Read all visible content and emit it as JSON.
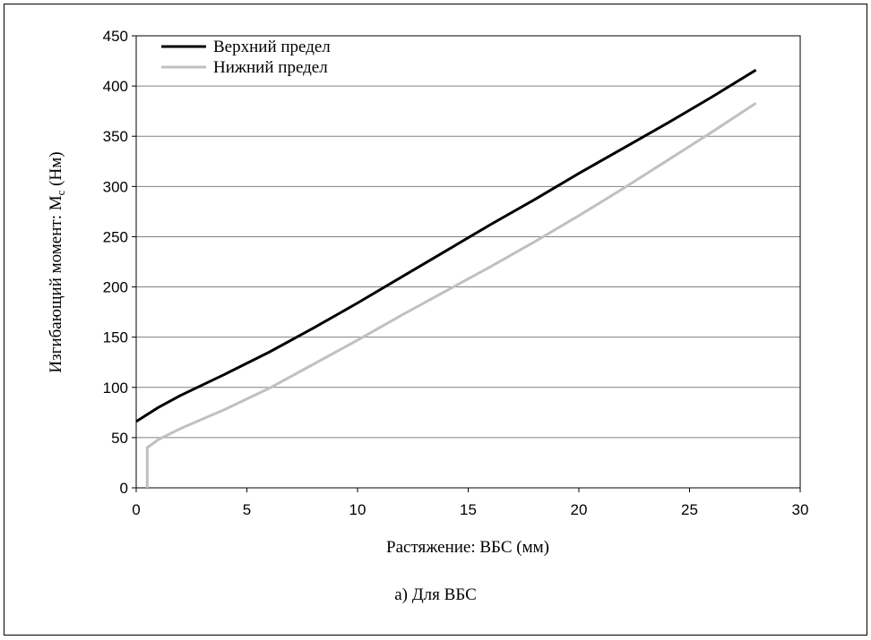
{
  "chart_data": {
    "type": "line",
    "xlabel": "Растяжение: ВБС (мм)",
    "ylabel": "Изгибающий момент: M",
    "ylabel_sub": "c",
    "ylabel_unit": " (Нм)",
    "xlim": [
      0,
      30
    ],
    "ylim": [
      0,
      450
    ],
    "x_ticks": [
      "0",
      "5",
      "10",
      "15",
      "20",
      "25",
      "30"
    ],
    "y_ticks": [
      "0",
      "50",
      "100",
      "150",
      "200",
      "250",
      "300",
      "350",
      "400",
      "450"
    ],
    "grid": "horizontal",
    "legend_position": "top-left",
    "series": [
      {
        "name": "Верхний предел",
        "color": "#000000",
        "x": [
          0,
          1,
          2,
          4,
          6,
          8,
          10,
          12,
          14,
          16,
          18,
          20,
          22,
          24,
          26,
          28
        ],
        "y": [
          66,
          80,
          92,
          113,
          135,
          159,
          184,
          210,
          236,
          262,
          287,
          313,
          338,
          363,
          389,
          416
        ]
      },
      {
        "name": "Нижний предел",
        "color": "#c0c0c0",
        "x": [
          0.5,
          0.5,
          1,
          2,
          4,
          6,
          8,
          10,
          12,
          14,
          16,
          18,
          20,
          22,
          24,
          26,
          28
        ],
        "y": [
          0,
          40,
          48,
          59,
          78,
          99,
          123,
          147,
          172,
          196,
          220,
          245,
          271,
          298,
          326,
          354,
          383
        ]
      }
    ]
  },
  "caption": "а) Для ВБС"
}
